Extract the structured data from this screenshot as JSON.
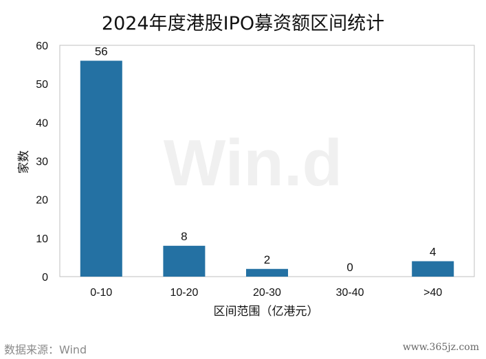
{
  "chart_data": {
    "type": "bar",
    "title": "2024年度港股IPO募资额区间统计",
    "xlabel": "区间范围（亿港元）",
    "ylabel": "家数",
    "categories": [
      "0-10",
      "10-20",
      "20-30",
      "30-40",
      ">40"
    ],
    "values": [
      56,
      8,
      2,
      0,
      4
    ],
    "data_labels": [
      "56",
      "8",
      "2",
      "0",
      "4"
    ],
    "ylim": [
      0,
      60
    ],
    "yticks": [
      0,
      10,
      20,
      30,
      40,
      50,
      60
    ],
    "grid": false,
    "legend": "none",
    "bar_color": "#2471a3",
    "watermark": "Win.d"
  },
  "source_note": "数据来源：Wind",
  "site_mark": "www.365jz.com"
}
